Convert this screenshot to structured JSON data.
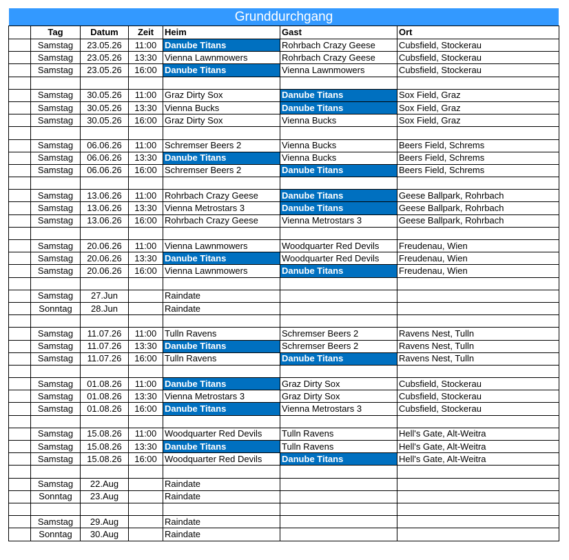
{
  "title": "Grunddurchgang",
  "highlight_team": "Danube Titans",
  "highlight_color": "#0070c0",
  "headers": {
    "tag": "Tag",
    "datum": "Datum",
    "zeit": "Zeit",
    "heim": "Heim",
    "gast": "Gast",
    "ort": "Ort"
  },
  "rows": [
    [
      "Samstag",
      "23.05.26",
      "11:00",
      "Danube Titans",
      "Rohrbach Crazy Geese",
      "Cubsfield, Stockerau"
    ],
    [
      "Samstag",
      "23.05.26",
      "13:30",
      "Vienna Lawnmowers",
      "Rohrbach Crazy Geese",
      "Cubsfield, Stockerau"
    ],
    [
      "Samstag",
      "23.05.26",
      "16:00",
      "Danube Titans",
      "Vienna Lawnmowers",
      "Cubsfield, Stockerau"
    ],
    [],
    [
      "Samstag",
      "30.05.26",
      "11:00",
      "Graz Dirty Sox",
      "Danube Titans",
      "Sox Field, Graz"
    ],
    [
      "Samstag",
      "30.05.26",
      "13:30",
      "Vienna Bucks",
      "Danube Titans",
      "Sox Field, Graz"
    ],
    [
      "Samstag",
      "30.05.26",
      "16:00",
      "Graz Dirty Sox",
      "Vienna Bucks",
      "Sox Field, Graz"
    ],
    [],
    [
      "Samstag",
      "06.06.26",
      "11:00",
      "Schremser Beers 2",
      "Vienna Bucks",
      "Beers Field, Schrems"
    ],
    [
      "Samstag",
      "06.06.26",
      "13:30",
      "Danube Titans",
      "Vienna Bucks",
      "Beers Field, Schrems"
    ],
    [
      "Samstag",
      "06.06.26",
      "16:00",
      "Schremser Beers 2",
      "Danube Titans",
      "Beers Field, Schrems"
    ],
    [],
    [
      "Samstag",
      "13.06.26",
      "11:00",
      "Rohrbach Crazy Geese",
      "Danube Titans",
      "Geese Ballpark, Rohrbach"
    ],
    [
      "Samstag",
      "13.06.26",
      "13:30",
      "Vienna Metrostars 3",
      "Danube Titans",
      "Geese Ballpark, Rohrbach"
    ],
    [
      "Samstag",
      "13.06.26",
      "16:00",
      "Rohrbach Crazy Geese",
      "Vienna Metrostars 3",
      "Geese Ballpark, Rohrbach"
    ],
    [],
    [
      "Samstag",
      "20.06.26",
      "11:00",
      "Vienna Lawnmowers",
      "Woodquarter Red Devils",
      "Freudenau, Wien"
    ],
    [
      "Samstag",
      "20.06.26",
      "13:30",
      "Danube Titans",
      "Woodquarter Red Devils",
      "Freudenau, Wien"
    ],
    [
      "Samstag",
      "20.06.26",
      "16:00",
      "Vienna Lawnmowers",
      "Danube Titans",
      "Freudenau, Wien"
    ],
    [],
    [
      "Samstag",
      "27.Jun",
      "",
      "Raindate",
      "",
      ""
    ],
    [
      "Sonntag",
      "28.Jun",
      "",
      "Raindate",
      "",
      ""
    ],
    [],
    [
      "Samstag",
      "11.07.26",
      "11:00",
      "Tulln Ravens",
      "Schremser Beers 2",
      "Ravens Nest, Tulln"
    ],
    [
      "Samstag",
      "11.07.26",
      "13:30",
      "Danube Titans",
      "Schremser Beers 2",
      "Ravens Nest, Tulln"
    ],
    [
      "Samstag",
      "11.07.26",
      "16:00",
      "Tulln Ravens",
      "Danube Titans",
      "Ravens Nest, Tulln"
    ],
    [],
    [
      "Samstag",
      "01.08.26",
      "11:00",
      "Danube Titans",
      "Graz Dirty Sox",
      "Cubsfield, Stockerau"
    ],
    [
      "Samstag",
      "01.08.26",
      "13:30",
      "Vienna Metrostars 3",
      "Graz Dirty Sox",
      "Cubsfield, Stockerau"
    ],
    [
      "Samstag",
      "01.08.26",
      "16:00",
      "Danube Titans",
      "Vienna Metrostars 3",
      "Cubsfield, Stockerau"
    ],
    [],
    [
      "Samstag",
      "15.08.26",
      "11:00",
      "Woodquarter Red Devils",
      "Tulln Ravens",
      "Hell's Gate, Alt-Weitra"
    ],
    [
      "Samstag",
      "15.08.26",
      "13:30",
      "Danube Titans",
      "Tulln Ravens",
      "Hell's Gate, Alt-Weitra"
    ],
    [
      "Samstag",
      "15.08.26",
      "16:00",
      "Woodquarter Red Devils",
      "Danube Titans",
      "Hell's Gate, Alt-Weitra"
    ],
    [],
    [
      "Samstag",
      "22.Aug",
      "",
      "Raindate",
      "",
      ""
    ],
    [
      "Sonntag",
      "23.Aug",
      "",
      "Raindate",
      "",
      ""
    ],
    [],
    [
      "Samstag",
      "29.Aug",
      "",
      "Raindate",
      "",
      ""
    ],
    [
      "Sonntag",
      "30.Aug",
      "",
      "Raindate",
      "",
      ""
    ]
  ]
}
